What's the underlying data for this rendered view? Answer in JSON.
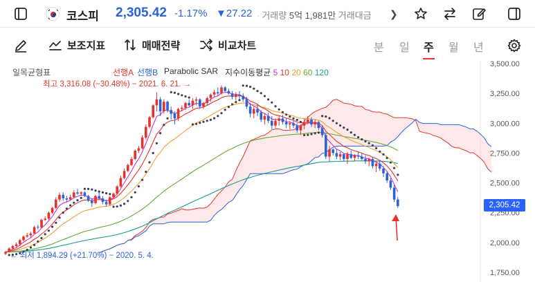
{
  "header": {
    "symbol_name": "코스피",
    "price": "2,305.42",
    "change_pct": "-1.17%",
    "change_amt": "▼27.22",
    "volume_label": "거래량",
    "volume_value": "5억 1,981만",
    "amount_label": "거래대금",
    "icons": [
      "sidebar-left-icon",
      "korea-flag-icon",
      "chevron-right-icon",
      "star-icon",
      "compare-swap-icon",
      "edit-icon",
      "sidebar-right-icon"
    ]
  },
  "toolbar": {
    "indicators_label": "보조지표",
    "strategy_label": "매매전략",
    "compare_label": "비교차트",
    "periods": [
      "분",
      "일",
      "주",
      "월",
      "년"
    ],
    "active_period": "주"
  },
  "chart_data": {
    "type": "line",
    "description_series": "weekly candlestick with ichimoku cloud, parabolic SAR and EMAs",
    "legend": {
      "ichimoku": "일목균형표",
      "spanA": "선행A",
      "spanB": "선행B",
      "sar": "Parabolic SAR",
      "ema_label": "지수이동평균",
      "ema_periods": [
        "5",
        "10",
        "20",
        "60",
        "120"
      ]
    },
    "annotations": {
      "high": "최고 3,316.08 (−30.48%) − 2021. 6. 21. →",
      "low": "← 최저 1,894.29 (+21.70%) − 2020. 5. 4."
    },
    "y_ticks": [
      "3,500.00",
      "3,250.00",
      "3,000.00",
      "2,750.00",
      "2,500.00",
      "2,250.00",
      "2,000.00",
      "1,750.00"
    ],
    "y_range": [
      1750,
      3500
    ],
    "last_price": "2,305.42",
    "candles": [
      [
        1905,
        1894,
        1930,
        1920
      ],
      [
        1920,
        1915,
        1960,
        1950
      ],
      [
        1950,
        1940,
        1980,
        1970
      ],
      [
        1970,
        1960,
        2000,
        1985
      ],
      [
        1985,
        1970,
        2030,
        2020
      ],
      [
        2020,
        2010,
        2060,
        2050
      ],
      [
        2050,
        2040,
        2080,
        2060
      ],
      [
        2060,
        2040,
        2090,
        2075
      ],
      [
        2075,
        2070,
        2140,
        2130
      ],
      [
        2130,
        2110,
        2150,
        2125
      ],
      [
        2125,
        2120,
        2200,
        2190
      ],
      [
        2190,
        2180,
        2220,
        2200
      ],
      [
        2200,
        2190,
        2260,
        2250
      ],
      [
        2250,
        2240,
        2300,
        2290
      ],
      [
        2290,
        2280,
        2380,
        2360
      ],
      [
        2360,
        2340,
        2420,
        2400
      ],
      [
        2400,
        2350,
        2420,
        2370
      ],
      [
        2370,
        2340,
        2390,
        2360
      ],
      [
        2360,
        2350,
        2400,
        2380
      ],
      [
        2380,
        2370,
        2440,
        2420
      ],
      [
        2420,
        2400,
        2450,
        2410
      ],
      [
        2410,
        2390,
        2430,
        2420
      ],
      [
        2420,
        2380,
        2430,
        2390
      ],
      [
        2390,
        2340,
        2400,
        2350
      ],
      [
        2350,
        2300,
        2370,
        2330
      ],
      [
        2330,
        2320,
        2400,
        2390
      ],
      [
        2390,
        2360,
        2420,
        2370
      ],
      [
        2370,
        2320,
        2390,
        2340
      ],
      [
        2340,
        2300,
        2360,
        2320
      ],
      [
        2320,
        2310,
        2390,
        2380
      ],
      [
        2380,
        2370,
        2420,
        2410
      ],
      [
        2410,
        2400,
        2480,
        2470
      ],
      [
        2470,
        2460,
        2560,
        2540
      ],
      [
        2540,
        2530,
        2620,
        2600
      ],
      [
        2600,
        2590,
        2660,
        2650
      ],
      [
        2650,
        2640,
        2720,
        2700
      ],
      [
        2700,
        2690,
        2780,
        2770
      ],
      [
        2770,
        2750,
        2810,
        2790
      ],
      [
        2790,
        2780,
        2900,
        2880
      ],
      [
        2880,
        2860,
        2990,
        2970
      ],
      [
        2970,
        2960,
        3060,
        3050
      ],
      [
        3050,
        3040,
        3160,
        3150
      ],
      [
        3150,
        3100,
        3260,
        3200
      ],
      [
        3200,
        3060,
        3220,
        3100
      ],
      [
        3100,
        3080,
        3200,
        3180
      ],
      [
        3180,
        3090,
        3190,
        3110
      ],
      [
        3110,
        3030,
        3140,
        3080
      ],
      [
        3080,
        2990,
        3100,
        3040
      ],
      [
        3040,
        3020,
        3130,
        3120
      ],
      [
        3120,
        3100,
        3150,
        3130
      ],
      [
        3130,
        3110,
        3180,
        3170
      ],
      [
        3170,
        3140,
        3200,
        3150
      ],
      [
        3150,
        3120,
        3210,
        3190
      ],
      [
        3190,
        3150,
        3220,
        3200
      ],
      [
        3200,
        3120,
        3210,
        3140
      ],
      [
        3140,
        3120,
        3180,
        3170
      ],
      [
        3170,
        3150,
        3220,
        3210
      ],
      [
        3210,
        3180,
        3250,
        3240
      ],
      [
        3240,
        3220,
        3280,
        3260
      ],
      [
        3260,
        3230,
        3300,
        3250
      ],
      [
        3250,
        3240,
        3316,
        3300
      ],
      [
        3300,
        3260,
        3310,
        3270
      ],
      [
        3270,
        3240,
        3290,
        3250
      ],
      [
        3250,
        3200,
        3270,
        3220
      ],
      [
        3220,
        3190,
        3260,
        3240
      ],
      [
        3240,
        3200,
        3270,
        3230
      ],
      [
        3230,
        3180,
        3250,
        3200
      ],
      [
        3200,
        3120,
        3220,
        3140
      ],
      [
        3140,
        3050,
        3170,
        3080
      ],
      [
        3080,
        3040,
        3140,
        3120
      ],
      [
        3120,
        3060,
        3160,
        3090
      ],
      [
        3090,
        3010,
        3110,
        3030
      ],
      [
        3030,
        2990,
        3080,
        3060
      ],
      [
        3060,
        3000,
        3090,
        3020
      ],
      [
        3020,
        2950,
        3060,
        2980
      ],
      [
        2980,
        2960,
        3040,
        3020
      ],
      [
        3020,
        2980,
        3060,
        3040
      ],
      [
        3040,
        2990,
        3070,
        3010
      ],
      [
        3010,
        2960,
        3040,
        2990
      ],
      [
        2990,
        2950,
        3020,
        3000
      ],
      [
        3000,
        2960,
        3030,
        2980
      ],
      [
        2980,
        2920,
        3000,
        2940
      ],
      [
        2940,
        2900,
        2990,
        2980
      ],
      [
        2980,
        2950,
        3040,
        3010
      ],
      [
        3010,
        2990,
        3060,
        3030
      ],
      [
        3030,
        2970,
        3050,
        2990
      ],
      [
        2990,
        2960,
        3030,
        3010
      ],
      [
        3010,
        2940,
        3020,
        2960
      ],
      [
        2960,
        2880,
        2980,
        2900
      ],
      [
        2900,
        2700,
        2920,
        2720
      ],
      [
        2720,
        2680,
        2810,
        2780
      ],
      [
        2780,
        2730,
        2790,
        2750
      ],
      [
        2750,
        2700,
        2780,
        2720
      ],
      [
        2720,
        2690,
        2760,
        2740
      ],
      [
        2740,
        2680,
        2750,
        2700
      ],
      [
        2700,
        2660,
        2760,
        2740
      ],
      [
        2740,
        2700,
        2770,
        2710
      ],
      [
        2710,
        2680,
        2740,
        2730
      ],
      [
        2730,
        2700,
        2760,
        2720
      ],
      [
        2720,
        2690,
        2750,
        2700
      ],
      [
        2700,
        2660,
        2730,
        2680
      ],
      [
        2680,
        2640,
        2710,
        2700
      ],
      [
        2700,
        2620,
        2720,
        2640
      ],
      [
        2640,
        2590,
        2680,
        2660
      ],
      [
        2660,
        2600,
        2690,
        2620
      ],
      [
        2620,
        2550,
        2640,
        2580
      ],
      [
        2580,
        2500,
        2600,
        2520
      ],
      [
        2520,
        2440,
        2540,
        2460
      ],
      [
        2460,
        2340,
        2480,
        2360
      ],
      [
        2360,
        2290,
        2380,
        2305
      ]
    ]
  }
}
